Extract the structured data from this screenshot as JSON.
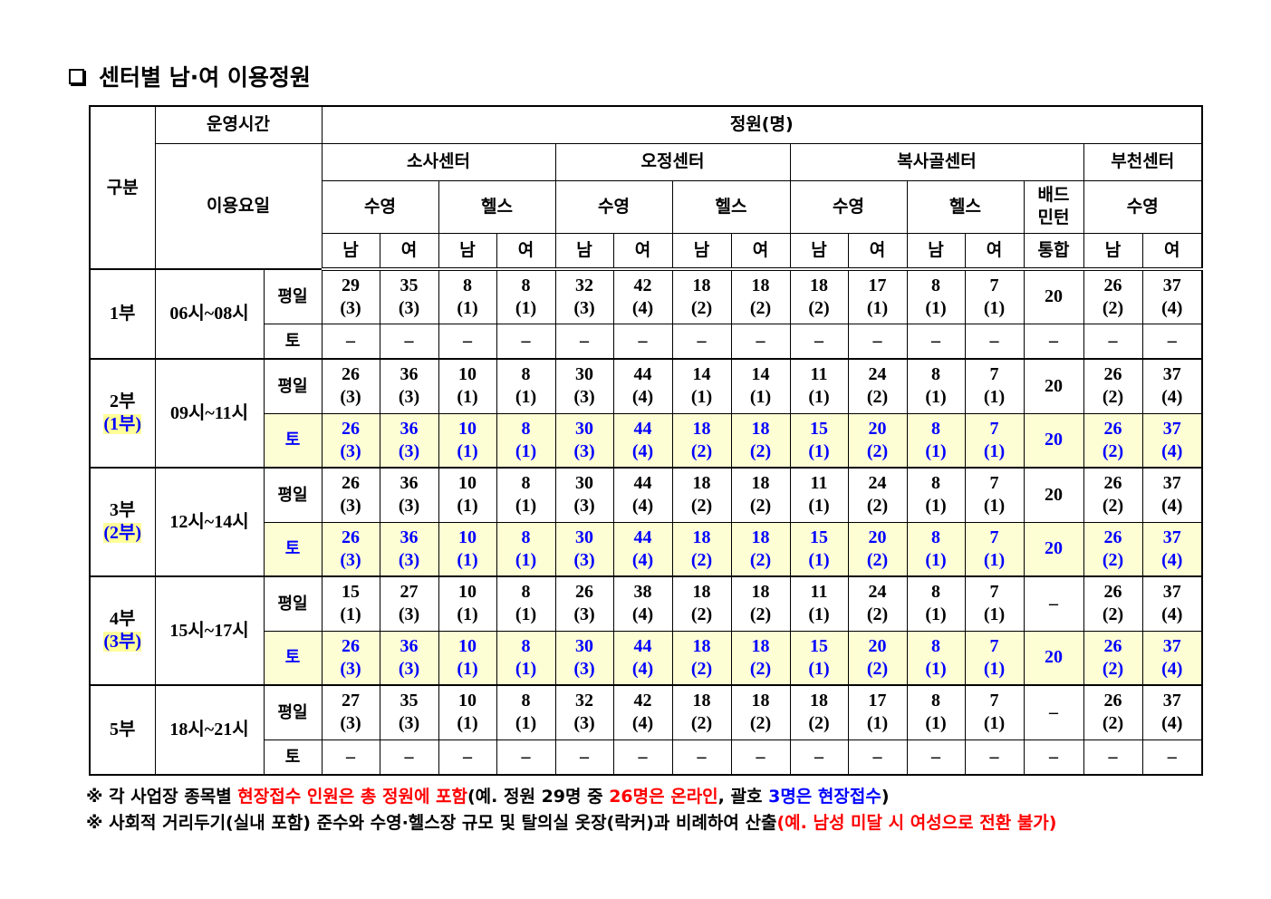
{
  "title": "센터별 남·여 이용정원",
  "table": {
    "headers": {
      "category": "구분",
      "hours": "운영시간",
      "capacity": "정원(명)",
      "days": "이용요일",
      "centers": [
        {
          "name": "소사센터",
          "sports": [
            {
              "name": "수영",
              "genders": [
                "남",
                "여"
              ]
            },
            {
              "name": "헬스",
              "genders": [
                "남",
                "여"
              ]
            }
          ]
        },
        {
          "name": "오정센터",
          "sports": [
            {
              "name": "수영",
              "genders": [
                "남",
                "여"
              ]
            },
            {
              "name": "헬스",
              "genders": [
                "남",
                "여"
              ]
            }
          ]
        },
        {
          "name": "복사골센터",
          "sports": [
            {
              "name": "수영",
              "genders": [
                "남",
                "여"
              ]
            },
            {
              "name": "헬스",
              "genders": [
                "남",
                "여"
              ]
            },
            {
              "name": "배드\n민턴",
              "genders": [
                "통합"
              ]
            }
          ]
        },
        {
          "name": "부천센터",
          "sports": [
            {
              "name": "수영",
              "genders": [
                "남",
                "여"
              ]
            }
          ]
        }
      ]
    },
    "sessions": [
      {
        "label": "1부",
        "time": "06시~08시",
        "rows": [
          {
            "day": "평일",
            "cells": [
              "29\n(3)",
              "35\n(3)",
              "8\n(1)",
              "8\n(1)",
              "32\n(3)",
              "42\n(4)",
              "18\n(2)",
              "18\n(2)",
              "18\n(2)",
              "17\n(1)",
              "8\n(1)",
              "7\n(1)",
              "20",
              "26\n(2)",
              "37\n(4)"
            ]
          },
          {
            "day": "토",
            "cells": [
              "–",
              "–",
              "–",
              "–",
              "–",
              "–",
              "–",
              "–",
              "–",
              "–",
              "–",
              "–",
              "–",
              "–",
              "–"
            ]
          }
        ]
      },
      {
        "label": "2부",
        "sub": "(1부)",
        "time": "09시~11시",
        "rows": [
          {
            "day": "평일",
            "cells": [
              "26\n(3)",
              "36\n(3)",
              "10\n(1)",
              "8\n(1)",
              "30\n(3)",
              "44\n(4)",
              "14\n(1)",
              "14\n(1)",
              "11\n(1)",
              "24\n(2)",
              "8\n(1)",
              "7\n(1)",
              "20",
              "26\n(2)",
              "37\n(4)"
            ]
          },
          {
            "day": "토",
            "cells": [
              "26\n(3)",
              "36\n(3)",
              "10\n(1)",
              "8\n(1)",
              "30\n(3)",
              "44\n(4)",
              "18\n(2)",
              "18\n(2)",
              "15\n(1)",
              "20\n(2)",
              "8\n(1)",
              "7\n(1)",
              "20",
              "26\n(2)",
              "37\n(4)"
            ]
          }
        ]
      },
      {
        "label": "3부",
        "sub": "(2부)",
        "time": "12시~14시",
        "rows": [
          {
            "day": "평일",
            "cells": [
              "26\n(3)",
              "36\n(3)",
              "10\n(1)",
              "8\n(1)",
              "30\n(3)",
              "44\n(4)",
              "18\n(2)",
              "18\n(2)",
              "11\n(1)",
              "24\n(2)",
              "8\n(1)",
              "7\n(1)",
              "20",
              "26\n(2)",
              "37\n(4)"
            ]
          },
          {
            "day": "토",
            "cells": [
              "26\n(3)",
              "36\n(3)",
              "10\n(1)",
              "8\n(1)",
              "30\n(3)",
              "44\n(4)",
              "18\n(2)",
              "18\n(2)",
              "15\n(1)",
              "20\n(2)",
              "8\n(1)",
              "7\n(1)",
              "20",
              "26\n(2)",
              "37\n(4)"
            ]
          }
        ]
      },
      {
        "label": "4부",
        "sub": "(3부)",
        "time": "15시~17시",
        "rows": [
          {
            "day": "평일",
            "cells": [
              "15\n(1)",
              "27\n(3)",
              "10\n(1)",
              "8\n(1)",
              "26\n(3)",
              "38\n(4)",
              "18\n(2)",
              "18\n(2)",
              "11\n(1)",
              "24\n(2)",
              "8\n(1)",
              "7\n(1)",
              "–",
              "26\n(2)",
              "37\n(4)"
            ]
          },
          {
            "day": "토",
            "cells": [
              "26\n(3)",
              "36\n(3)",
              "10\n(1)",
              "8\n(1)",
              "30\n(3)",
              "44\n(4)",
              "18\n(2)",
              "18\n(2)",
              "15\n(1)",
              "20\n(2)",
              "8\n(1)",
              "7\n(1)",
              "20",
              "26\n(2)",
              "37\n(4)"
            ]
          }
        ]
      },
      {
        "label": "5부",
        "time": "18시~21시",
        "rows": [
          {
            "day": "평일",
            "cells": [
              "27\n(3)",
              "35\n(3)",
              "10\n(1)",
              "8\n(1)",
              "32\n(3)",
              "42\n(4)",
              "18\n(2)",
              "18\n(2)",
              "18\n(2)",
              "17\n(1)",
              "8\n(1)",
              "7\n(1)",
              "–",
              "26\n(2)",
              "37\n(4)"
            ]
          },
          {
            "day": "토",
            "cells": [
              "–",
              "–",
              "–",
              "–",
              "–",
              "–",
              "–",
              "–",
              "–",
              "–",
              "–",
              "–",
              "–",
              "–",
              "–"
            ]
          }
        ]
      }
    ]
  },
  "notes": [
    [
      {
        "text": "※ 각 사업장 종목별 "
      },
      {
        "text": "현장접수 인원은 총 정원에 포함",
        "color": "#ff0000"
      },
      {
        "text": "(예. 정원 29명 중 "
      },
      {
        "text": "26명은 온라인",
        "color": "#ff0000"
      },
      {
        "text": ", 괄호 "
      },
      {
        "text": "3명은 현장접수",
        "color": "#0000ff"
      },
      {
        "text": ")"
      }
    ],
    [
      {
        "text": "※ 사회적 거리두기(실내 포함) 준수와 수영·헬스장 규모 및 탈의실 옷장(락커)과 비례하여 산출"
      },
      {
        "text": "(예. 남성 미달 시 여성으로 전환 불가)",
        "color": "#ff0000"
      }
    ]
  ]
}
